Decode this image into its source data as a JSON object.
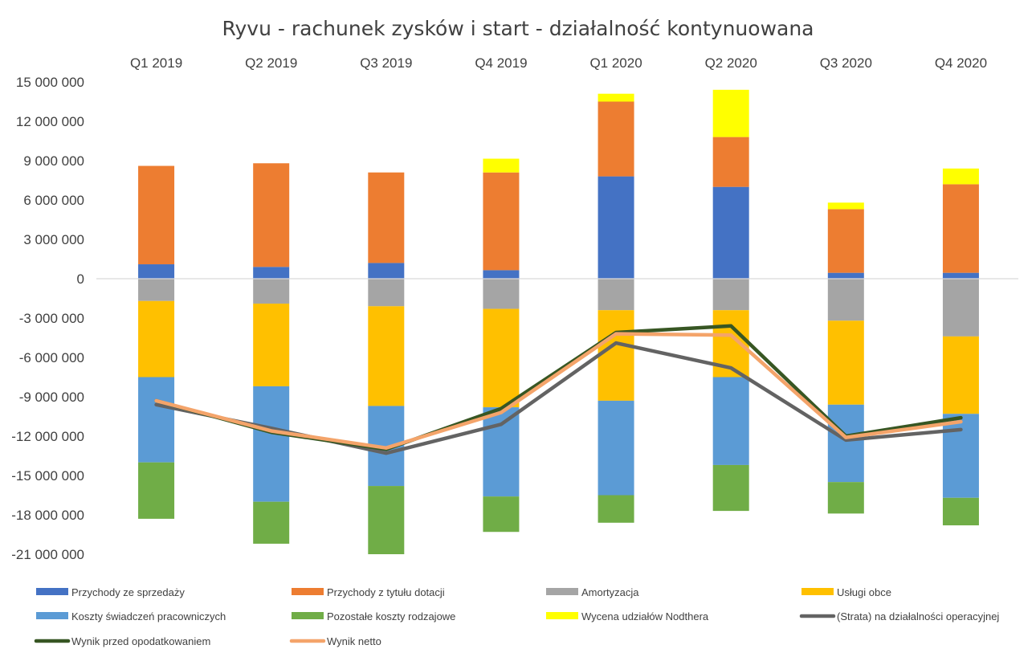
{
  "chart_data": {
    "type": "bar",
    "stacked": true,
    "title": "Ryvu - rachunek zysków i start - działalność kontynuowana",
    "categories": [
      "Q1 2019",
      "Q2 2019",
      "Q3 2019",
      "Q4 2019",
      "Q1 2020",
      "Q2 2020",
      "Q3 2020",
      "Q4 2020"
    ],
    "category_axis_position": "top",
    "y_ticks": [
      15000000,
      12000000,
      9000000,
      6000000,
      3000000,
      0,
      -3000000,
      -6000000,
      -9000000,
      -12000000,
      -15000000,
      -18000000,
      -21000000
    ],
    "y_tick_labels": [
      "15 000 000",
      "12 000 000",
      "9 000 000",
      "6 000 000",
      "3 000 000",
      "0",
      "-3 000 000",
      "-6 000 000",
      "-9 000 000",
      "-12 000 000",
      "-15 000 000",
      "-18 000 000",
      "-21 000 000"
    ],
    "ylim": [
      -21000000,
      15000000
    ],
    "grid": false,
    "legend_position": "bottom",
    "bar_series": [
      {
        "name": "Przychody ze sprzedaży",
        "color": "#4472c4",
        "values": [
          1100000,
          900000,
          1200000,
          650000,
          7800000,
          7000000,
          450000,
          450000
        ]
      },
      {
        "name": "Przychody z tytułu dotacji",
        "color": "#ed7d31",
        "values": [
          7500000,
          7900000,
          6900000,
          7450000,
          5700000,
          3800000,
          4850000,
          6750000
        ]
      },
      {
        "name": "Wycena udziałów Nodthera",
        "color": "#ffff00",
        "values": [
          0,
          0,
          0,
          1050000,
          600000,
          3600000,
          500000,
          1200000
        ]
      },
      {
        "name": "Amortyzacja",
        "color": "#a5a5a5",
        "values": [
          -1700000,
          -1900000,
          -2100000,
          -2300000,
          -2400000,
          -2400000,
          -3200000,
          -4400000
        ]
      },
      {
        "name": "Usługi obce",
        "color": "#ffc000",
        "values": [
          -5800000,
          -6300000,
          -7600000,
          -7500000,
          -6900000,
          -5100000,
          -6400000,
          -5900000
        ]
      },
      {
        "name": "Koszty świadczeń pracowniczych",
        "color": "#5b9bd5",
        "values": [
          -6500000,
          -8800000,
          -6100000,
          -6800000,
          -7200000,
          -6700000,
          -5900000,
          -6400000
        ]
      },
      {
        "name": "Pozostałe koszty rodzajowe",
        "color": "#70ad47",
        "values": [
          -4300000,
          -3200000,
          -5200000,
          -2700000,
          -2100000,
          -3500000,
          -2400000,
          -2100000
        ]
      }
    ],
    "line_series": [
      {
        "name": "(Strata) na działalności operacyjnej",
        "color": "#636363",
        "values": [
          -9600000,
          -11400000,
          -13300000,
          -11100000,
          -4900000,
          -6800000,
          -12300000,
          -11500000
        ]
      },
      {
        "name": "Wynik przed opodatkowaniem",
        "color": "#375623",
        "values": [
          -9300000,
          -11700000,
          -13000000,
          -9900000,
          -4100000,
          -3600000,
          -12000000,
          -10600000
        ]
      },
      {
        "name": "Wynik netto",
        "color": "#f4a46a",
        "values": [
          -9300000,
          -11600000,
          -12900000,
          -10200000,
          -4200000,
          -4300000,
          -12100000,
          -10900000
        ]
      }
    ],
    "legend_entries": [
      {
        "name": "Przychody ze sprzedaży",
        "color": "#4472c4",
        "kind": "box"
      },
      {
        "name": "Przychody z tytułu dotacji",
        "color": "#ed7d31",
        "kind": "box"
      },
      {
        "name": "Amortyzacja",
        "color": "#a5a5a5",
        "kind": "box"
      },
      {
        "name": "Usługi obce",
        "color": "#ffc000",
        "kind": "box"
      },
      {
        "name": "Koszty świadczeń pracowniczych",
        "color": "#5b9bd5",
        "kind": "box"
      },
      {
        "name": "Pozostałe koszty rodzajowe",
        "color": "#70ad47",
        "kind": "box"
      },
      {
        "name": "Wycena udziałów Nodthera",
        "color": "#ffff00",
        "kind": "box"
      },
      {
        "name": "(Strata) na działalności operacyjnej",
        "color": "#636363",
        "kind": "line"
      },
      {
        "name": "Wynik przed opodatkowaniem",
        "color": "#375623",
        "kind": "line"
      },
      {
        "name": "Wynik netto",
        "color": "#f4a46a",
        "kind": "line"
      }
    ]
  }
}
